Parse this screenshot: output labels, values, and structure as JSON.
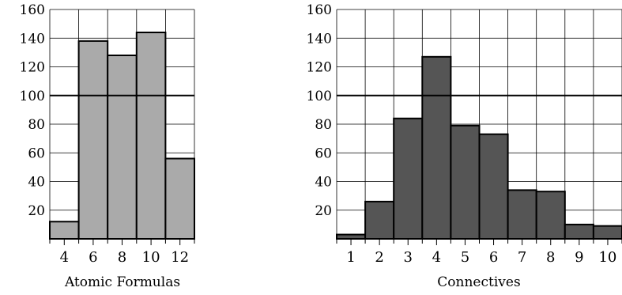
{
  "chart_data": [
    {
      "type": "bar",
      "xlabel": "Atomic Formulas",
      "categories": [
        "4",
        "6",
        "8",
        "10",
        "12"
      ],
      "values": [
        12,
        138,
        128,
        144,
        56
      ],
      "ylim": [
        0,
        160
      ],
      "yticks": [
        20,
        40,
        60,
        80,
        100,
        120,
        140,
        160
      ],
      "grid": true,
      "reference_line": 100,
      "bar_color": "#aaaaaa"
    },
    {
      "type": "bar",
      "xlabel": "Connectives",
      "categories": [
        "1",
        "2",
        "3",
        "4",
        "5",
        "6",
        "7",
        "8",
        "9",
        "10"
      ],
      "values": [
        3,
        26,
        84,
        127,
        79,
        73,
        34,
        33,
        10,
        9
      ],
      "ylim": [
        0,
        160
      ],
      "yticks": [
        20,
        40,
        60,
        80,
        100,
        120,
        140,
        160
      ],
      "grid": true,
      "reference_line": 100,
      "bar_color": "#555555"
    }
  ]
}
